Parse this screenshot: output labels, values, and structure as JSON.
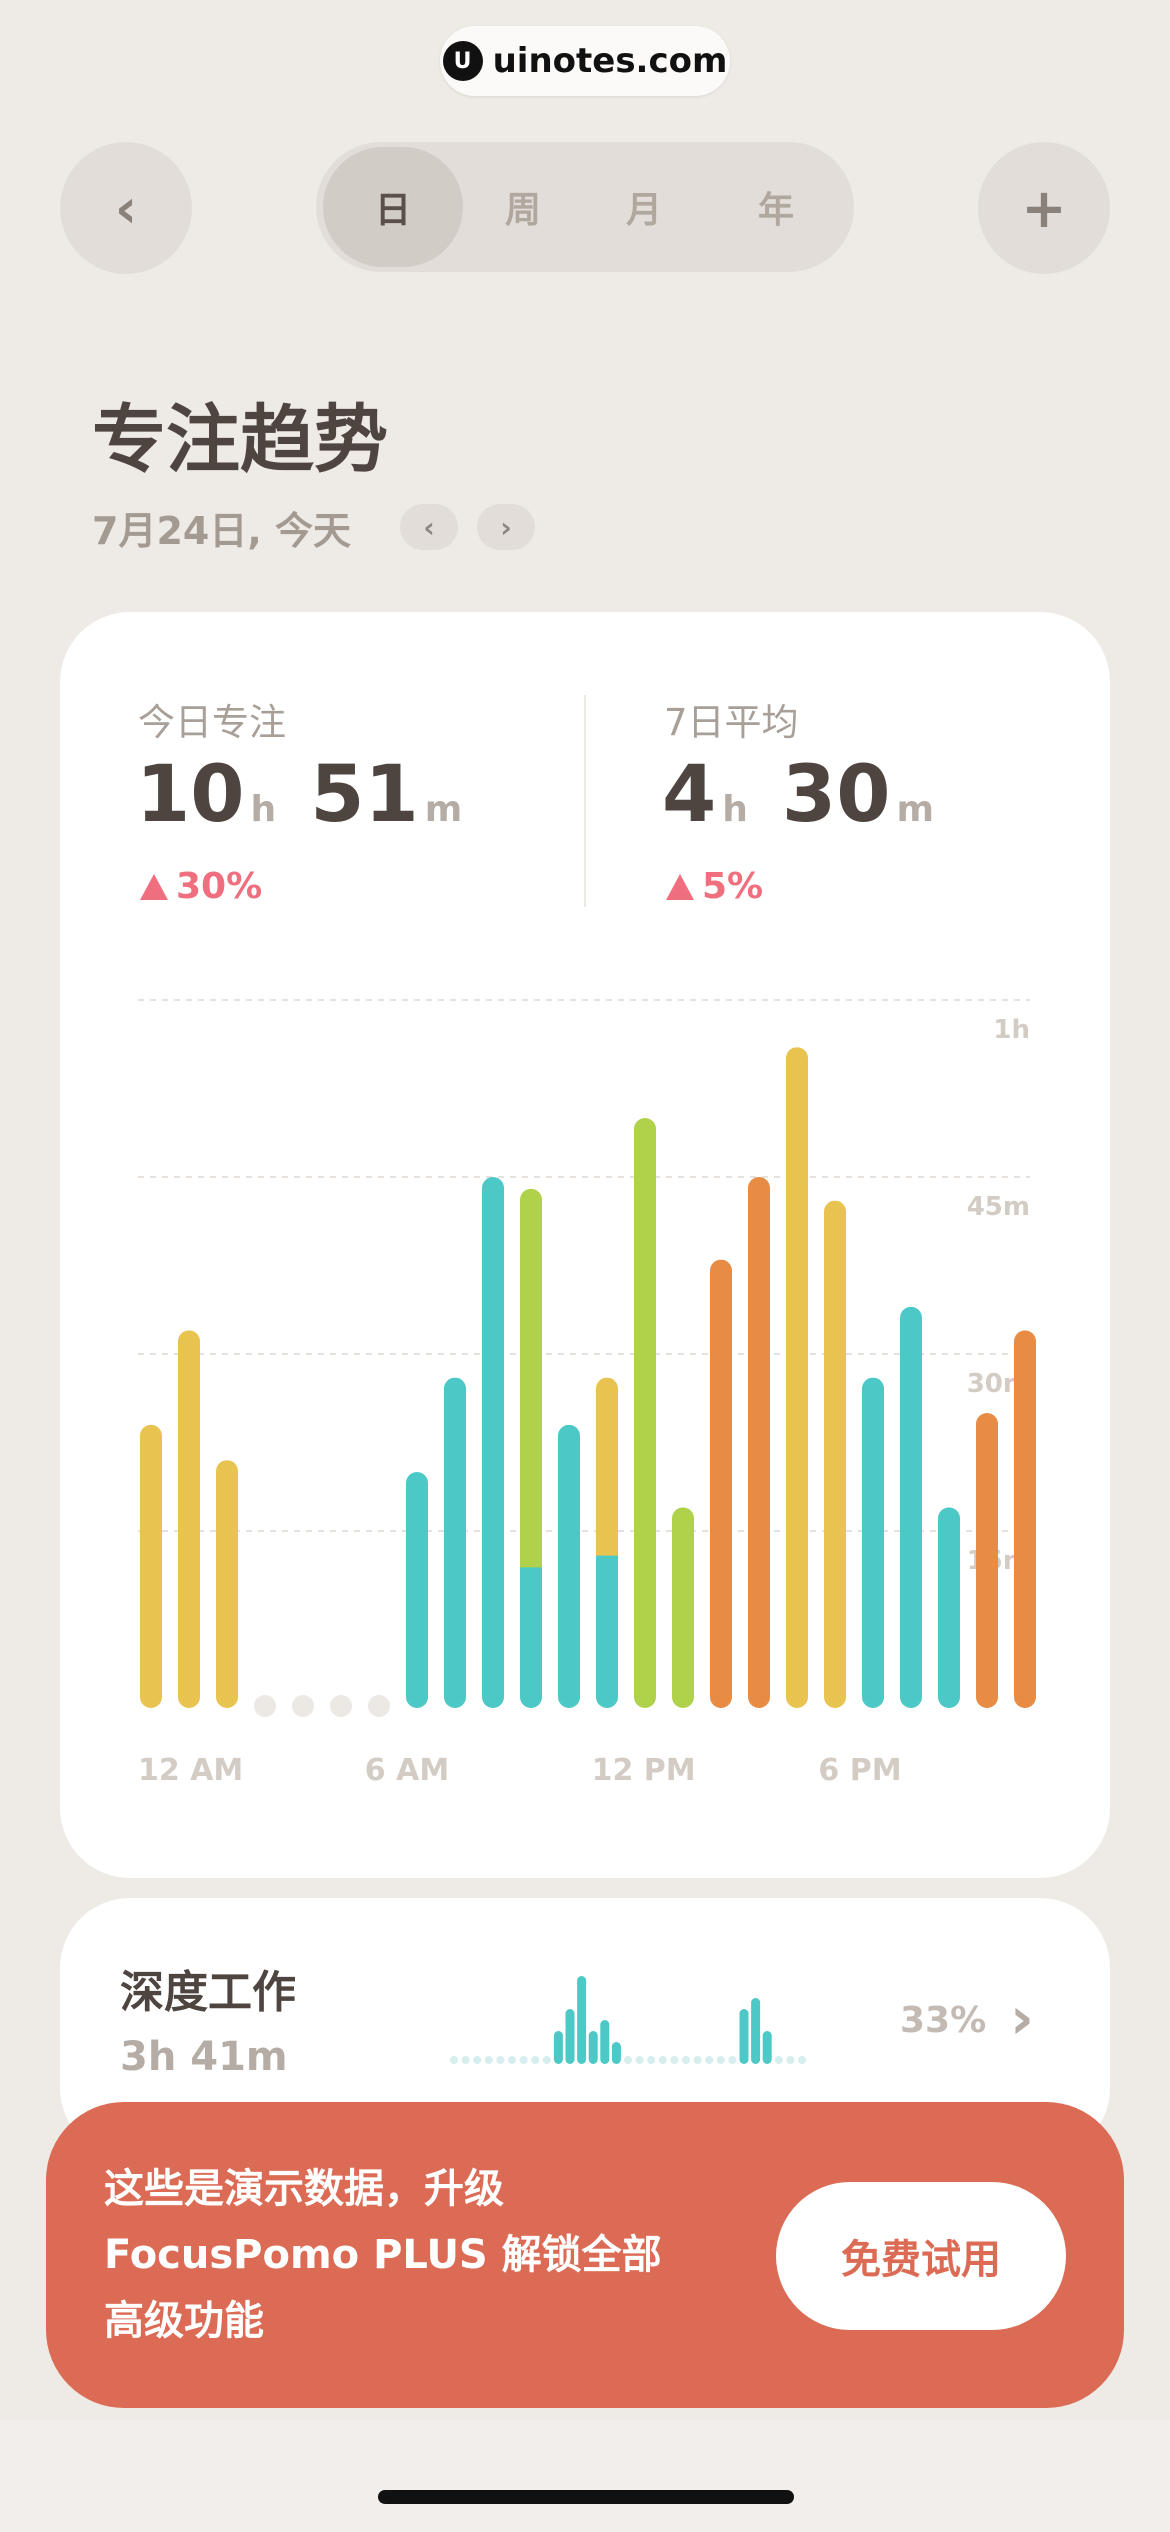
{
  "watermark": {
    "logo": "U",
    "text": "uinotes.com"
  },
  "nav": {
    "back_icon": "‹",
    "add_icon": "+"
  },
  "tabs": [
    {
      "label": "日",
      "active": true
    },
    {
      "label": "周"
    },
    {
      "label": "月"
    },
    {
      "label": "年"
    }
  ],
  "header": {
    "title": "专注趋势",
    "date": "7月24日, 今天",
    "prev_icon": "‹",
    "next_icon": "›"
  },
  "stats": {
    "today": {
      "label": "今日专注",
      "hours": "10",
      "h_unit": "h",
      "minutes": "51",
      "m_unit": "m",
      "delta": "30%"
    },
    "week_avg": {
      "label": "7日平均",
      "hours": "4",
      "h_unit": "h",
      "minutes": "30",
      "m_unit": "m",
      "delta": "5%"
    }
  },
  "colors": {
    "teal": "#4cc8c7",
    "green": "#afd24a",
    "yellow": "#e8c34f",
    "orange": "#e88c45",
    "accent": "#dc6b55",
    "delta": "#ef6f7f"
  },
  "chart_data": {
    "type": "bar",
    "stacked": true,
    "x": [
      "0",
      "1",
      "2",
      "3",
      "4",
      "5",
      "6",
      "7",
      "8",
      "9",
      "10",
      "11",
      "12",
      "13",
      "14",
      "15",
      "16",
      "17",
      "18",
      "19",
      "20",
      "21",
      "22",
      "23"
    ],
    "x_tick_labels": [
      "12 AM",
      "6 AM",
      "12 PM",
      "6 PM"
    ],
    "y_tick_labels": [
      "1h",
      "45m",
      "30m",
      "15m"
    ],
    "y_unit": "minutes",
    "ylim": [
      0,
      60
    ],
    "grid": true,
    "bars": [
      [
        {
          "color": "yellow",
          "value": 24
        }
      ],
      [
        {
          "color": "yellow",
          "value": 32
        }
      ],
      [
        {
          "color": "yellow",
          "value": 21
        }
      ],
      [],
      [],
      [],
      [],
      [
        {
          "color": "teal",
          "value": 20
        }
      ],
      [
        {
          "color": "teal",
          "value": 28
        }
      ],
      [
        {
          "color": "teal",
          "value": 45
        }
      ],
      [
        {
          "color": "teal",
          "value": 12
        },
        {
          "color": "green",
          "value": 32
        }
      ],
      [
        {
          "color": "teal",
          "value": 24
        }
      ],
      [
        {
          "color": "teal",
          "value": 13
        },
        {
          "color": "yellow",
          "value": 15
        }
      ],
      [
        {
          "color": "green",
          "value": 50
        }
      ],
      [
        {
          "color": "green",
          "value": 17
        }
      ],
      [
        {
          "color": "orange",
          "value": 38
        }
      ],
      [
        {
          "color": "orange",
          "value": 45
        }
      ],
      [
        {
          "color": "yellow",
          "value": 56
        }
      ],
      [
        {
          "color": "yellow",
          "value": 43
        }
      ],
      [
        {
          "color": "teal",
          "value": 28
        }
      ],
      [
        {
          "color": "teal",
          "value": 34
        }
      ],
      [
        {
          "color": "teal",
          "value": 17
        }
      ],
      [
        {
          "color": "orange",
          "value": 25
        }
      ],
      [
        {
          "color": "orange",
          "value": 32
        }
      ]
    ]
  },
  "deep_work": {
    "title": "深度工作",
    "duration": "3h 41m",
    "percent": "33%",
    "chevron": "›",
    "sparkline": [
      0,
      0,
      0,
      0,
      0,
      0,
      0,
      0,
      0,
      3,
      5,
      8,
      3,
      4,
      2,
      0,
      0,
      0,
      0,
      0,
      0,
      0,
      0,
      0,
      0,
      5,
      6,
      3,
      0,
      0,
      0
    ]
  },
  "banner": {
    "text_line1": "这些是演示数据，升级",
    "text_line2": "FocusPomo PLUS 解锁全部",
    "text_line3": "高级功能",
    "button": "免费试用"
  }
}
